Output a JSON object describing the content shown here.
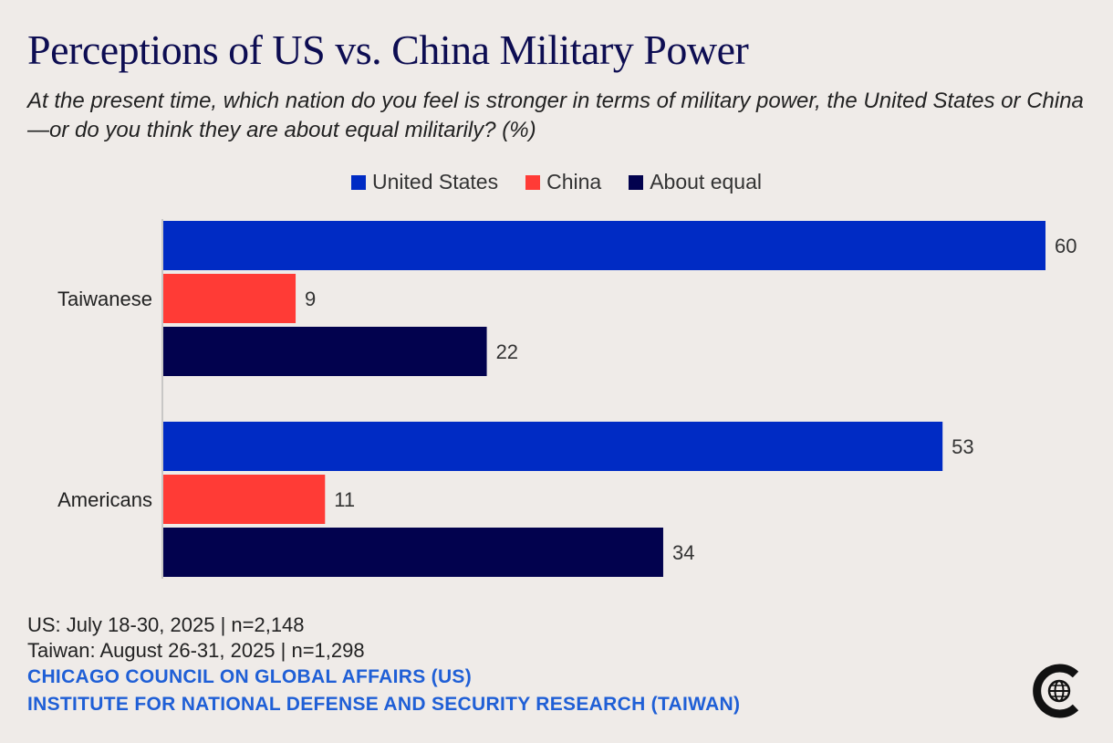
{
  "title": "Perceptions of US vs. China Military Power",
  "subtitle": "At the present time, which nation do you feel is stronger in terms of military power, the United States or China—or do you think they are about equal militarily? (%)",
  "colors": {
    "us": "#002bc4",
    "china": "#ff3b36",
    "equal": "#02024e"
  },
  "legend": [
    {
      "label": "United States",
      "color": "#002bc4"
    },
    {
      "label": "China",
      "color": "#ff3b36"
    },
    {
      "label": "About equal",
      "color": "#02024e"
    }
  ],
  "chart_data": {
    "type": "bar",
    "orientation": "horizontal",
    "title": "Perceptions of US vs. China Military Power",
    "categories": [
      "Taiwanese",
      "Americans"
    ],
    "series": [
      {
        "name": "United States",
        "values": [
          60,
          53
        ]
      },
      {
        "name": "China",
        "values": [
          9,
          11
        ]
      },
      {
        "name": "About equal",
        "values": [
          22,
          34
        ]
      }
    ],
    "xlim": [
      0,
      60
    ],
    "grid": false,
    "legend_position": "top-center"
  },
  "footer": {
    "us_field": "US: July 18-30, 2025 | n=2,148",
    "tw_field": "Taiwan: August 26-31, 2025 | n=1,298",
    "source1": "CHICAGO COUNCIL ON GLOBAL AFFAIRS (US)",
    "source2": "INSTITUTE FOR NATIONAL DEFENSE AND SECURITY RESEARCH (TAIWAN)"
  },
  "logo": {
    "icon": "chicago-council-globe-icon"
  }
}
